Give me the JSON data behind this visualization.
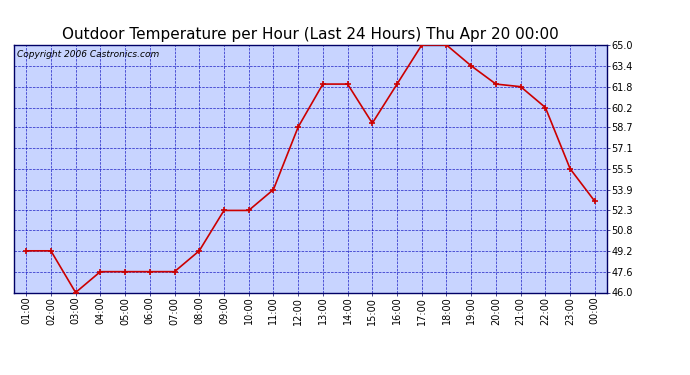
{
  "title": "Outdoor Temperature per Hour (Last 24 Hours) Thu Apr 20 00:00",
  "copyright": "Copyright 2006 Castronics.com",
  "hours": [
    "01:00",
    "02:00",
    "03:00",
    "04:00",
    "05:00",
    "06:00",
    "07:00",
    "08:00",
    "09:00",
    "10:00",
    "11:00",
    "12:00",
    "13:00",
    "14:00",
    "15:00",
    "16:00",
    "17:00",
    "18:00",
    "19:00",
    "20:00",
    "21:00",
    "22:00",
    "23:00",
    "00:00"
  ],
  "values": [
    49.2,
    49.2,
    46.0,
    47.6,
    47.6,
    47.6,
    47.6,
    49.2,
    52.3,
    52.3,
    53.9,
    58.7,
    62.0,
    62.0,
    59.0,
    62.0,
    65.0,
    65.0,
    63.4,
    62.0,
    61.8,
    60.2,
    55.5,
    53.0
  ],
  "ylim": [
    46.0,
    65.0
  ],
  "yticks": [
    46.0,
    47.6,
    49.2,
    50.8,
    52.3,
    53.9,
    55.5,
    57.1,
    58.7,
    60.2,
    61.8,
    63.4,
    65.0
  ],
  "line_color": "#cc0000",
  "marker_color": "#cc0000",
  "bg_color": "#c8d4ff",
  "fig_bg": "#ffffff",
  "grid_color": "#0000bb",
  "border_color": "#000066",
  "title_fontsize": 11,
  "copyright_fontsize": 6.5,
  "tick_fontsize": 7,
  "ytick_fontsize": 7
}
